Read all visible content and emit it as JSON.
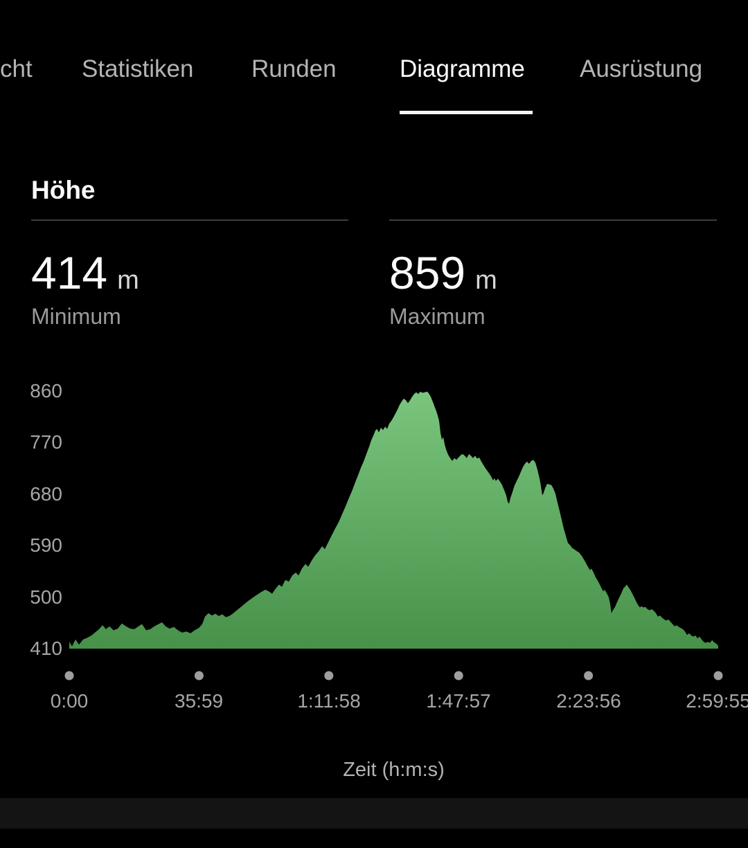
{
  "tab_bar": {
    "tabs": [
      {
        "label": "cht",
        "active": false
      },
      {
        "label": "Statistiken",
        "active": false
      },
      {
        "label": "Runden",
        "active": false
      },
      {
        "label": "Diagramme",
        "active": true
      },
      {
        "label": "Ausrüstung",
        "active": false
      }
    ]
  },
  "section": {
    "title": "Höhe"
  },
  "stats": {
    "minimum": {
      "value": "414",
      "unit": "m",
      "label": "Minimum"
    },
    "maximum": {
      "value": "859",
      "unit": "m",
      "label": "Maximum"
    }
  },
  "chart_data": {
    "type": "area",
    "title": "Höhe",
    "xlabel": "Zeit (h:m:s)",
    "ylabel": "m",
    "ylim": [
      410,
      860
    ],
    "y_ticks": [
      860,
      770,
      680,
      590,
      500,
      410
    ],
    "x_total_seconds": 10795,
    "x_ticks": [
      {
        "t": 0,
        "label": "0:00"
      },
      {
        "t": 2159,
        "label": "35:59"
      },
      {
        "t": 4318,
        "label": "1:11:58"
      },
      {
        "t": 6477,
        "label": "1:47:57"
      },
      {
        "t": 8636,
        "label": "2:23:56"
      },
      {
        "t": 10795,
        "label": "2:59:55"
      }
    ],
    "grid": false,
    "legend": false,
    "fill_gradient": {
      "top": "#7cc77f",
      "bottom": "#47914a"
    },
    "series": [
      {
        "name": "Höhe",
        "unit": "m",
        "points": [
          [
            0,
            422
          ],
          [
            46,
            414
          ],
          [
            104,
            426
          ],
          [
            161,
            417
          ],
          [
            230,
            426
          ],
          [
            300,
            429
          ],
          [
            369,
            433
          ],
          [
            426,
            438
          ],
          [
            495,
            444
          ],
          [
            553,
            451
          ],
          [
            611,
            444
          ],
          [
            668,
            449
          ],
          [
            737,
            442
          ],
          [
            806,
            445
          ],
          [
            875,
            454
          ],
          [
            945,
            449
          ],
          [
            1014,
            445
          ],
          [
            1083,
            444
          ],
          [
            1152,
            449
          ],
          [
            1210,
            453
          ],
          [
            1279,
            442
          ],
          [
            1348,
            444
          ],
          [
            1417,
            449
          ],
          [
            1486,
            453
          ],
          [
            1544,
            456
          ],
          [
            1601,
            449
          ],
          [
            1670,
            445
          ],
          [
            1740,
            448
          ],
          [
            1809,
            442
          ],
          [
            1878,
            438
          ],
          [
            1947,
            440
          ],
          [
            2016,
            437
          ],
          [
            2085,
            442
          ],
          [
            2154,
            446
          ],
          [
            2212,
            453
          ],
          [
            2258,
            466
          ],
          [
            2316,
            472
          ],
          [
            2373,
            468
          ],
          [
            2431,
            471
          ],
          [
            2489,
            467
          ],
          [
            2546,
            470
          ],
          [
            2604,
            465
          ],
          [
            2661,
            467
          ],
          [
            2719,
            471
          ],
          [
            2777,
            476
          ],
          [
            2846,
            482
          ],
          [
            2915,
            488
          ],
          [
            2984,
            494
          ],
          [
            3053,
            499
          ],
          [
            3122,
            504
          ],
          [
            3191,
            509
          ],
          [
            3260,
            513
          ],
          [
            3318,
            510
          ],
          [
            3375,
            506
          ],
          [
            3433,
            515
          ],
          [
            3491,
            522
          ],
          [
            3537,
            518
          ],
          [
            3594,
            530
          ],
          [
            3652,
            527
          ],
          [
            3710,
            538
          ],
          [
            3767,
            543
          ],
          [
            3813,
            538
          ],
          [
            3871,
            550
          ],
          [
            3929,
            558
          ],
          [
            3975,
            553
          ],
          [
            4032,
            564
          ],
          [
            4090,
            573
          ],
          [
            4147,
            580
          ],
          [
            4205,
            589
          ],
          [
            4251,
            584
          ],
          [
            4309,
            596
          ],
          [
            4366,
            608
          ],
          [
            4424,
            620
          ],
          [
            4482,
            631
          ],
          [
            4539,
            645
          ],
          [
            4597,
            659
          ],
          [
            4655,
            674
          ],
          [
            4712,
            688
          ],
          [
            4758,
            701
          ],
          [
            4804,
            713
          ],
          [
            4850,
            726
          ],
          [
            4896,
            737
          ],
          [
            4942,
            750
          ],
          [
            4988,
            763
          ],
          [
            5023,
            774
          ],
          [
            5058,
            782
          ],
          [
            5092,
            791
          ],
          [
            5115,
            794
          ],
          [
            5150,
            788
          ],
          [
            5184,
            796
          ],
          [
            5219,
            792
          ],
          [
            5253,
            798
          ],
          [
            5288,
            794
          ],
          [
            5322,
            803
          ],
          [
            5357,
            808
          ],
          [
            5392,
            814
          ],
          [
            5426,
            821
          ],
          [
            5461,
            828
          ],
          [
            5495,
            836
          ],
          [
            5530,
            842
          ],
          [
            5564,
            847
          ],
          [
            5599,
            844
          ],
          [
            5634,
            839
          ],
          [
            5668,
            844
          ],
          [
            5703,
            850
          ],
          [
            5737,
            855
          ],
          [
            5772,
            858
          ],
          [
            5806,
            855
          ],
          [
            5841,
            859
          ],
          [
            5876,
            857
          ],
          [
            5910,
            858
          ],
          [
            5956,
            859
          ],
          [
            5979,
            856
          ],
          [
            6014,
            850
          ],
          [
            6037,
            844
          ],
          [
            6060,
            838
          ],
          [
            6083,
            831
          ],
          [
            6106,
            825
          ],
          [
            6129,
            817
          ],
          [
            6152,
            808
          ],
          [
            6175,
            787
          ],
          [
            6198,
            775
          ],
          [
            6221,
            780
          ],
          [
            6244,
            767
          ],
          [
            6267,
            758
          ],
          [
            6302,
            749
          ],
          [
            6336,
            743
          ],
          [
            6371,
            738
          ],
          [
            6406,
            743
          ],
          [
            6440,
            740
          ],
          [
            6475,
            744
          ],
          [
            6509,
            748
          ],
          [
            6544,
            750
          ],
          [
            6578,
            747
          ],
          [
            6613,
            743
          ],
          [
            6647,
            750
          ],
          [
            6682,
            747
          ],
          [
            6716,
            743
          ],
          [
            6751,
            747
          ],
          [
            6786,
            742
          ],
          [
            6820,
            744
          ],
          [
            6855,
            737
          ],
          [
            6889,
            731
          ],
          [
            6924,
            725
          ],
          [
            6958,
            720
          ],
          [
            6993,
            715
          ],
          [
            7027,
            709
          ],
          [
            7050,
            704
          ],
          [
            7073,
            708
          ],
          [
            7096,
            703
          ],
          [
            7131,
            707
          ],
          [
            7165,
            702
          ],
          [
            7200,
            696
          ],
          [
            7235,
            687
          ],
          [
            7269,
            678
          ],
          [
            7292,
            667
          ],
          [
            7315,
            663
          ],
          [
            7338,
            673
          ],
          [
            7373,
            684
          ],
          [
            7407,
            695
          ],
          [
            7442,
            703
          ],
          [
            7476,
            710
          ],
          [
            7511,
            719
          ],
          [
            7545,
            727
          ],
          [
            7580,
            733
          ],
          [
            7614,
            737
          ],
          [
            7649,
            733
          ],
          [
            7684,
            738
          ],
          [
            7718,
            740
          ],
          [
            7753,
            735
          ],
          [
            7787,
            723
          ],
          [
            7822,
            708
          ],
          [
            7845,
            695
          ],
          [
            7868,
            678
          ],
          [
            7891,
            682
          ],
          [
            7914,
            690
          ],
          [
            7949,
            698
          ],
          [
            7983,
            697
          ],
          [
            8018,
            696
          ],
          [
            8052,
            690
          ],
          [
            8087,
            681
          ],
          [
            8122,
            665
          ],
          [
            8156,
            651
          ],
          [
            8191,
            635
          ],
          [
            8225,
            620
          ],
          [
            8260,
            607
          ],
          [
            8294,
            595
          ],
          [
            8329,
            591
          ],
          [
            8364,
            586
          ],
          [
            8398,
            584
          ],
          [
            8433,
            581
          ],
          [
            8479,
            578
          ],
          [
            8525,
            572
          ],
          [
            8571,
            564
          ],
          [
            8617,
            555
          ],
          [
            8663,
            547
          ],
          [
            8686,
            550
          ],
          [
            8721,
            543
          ],
          [
            8755,
            535
          ],
          [
            8801,
            527
          ],
          [
            8847,
            517
          ],
          [
            8882,
            510
          ],
          [
            8905,
            513
          ],
          [
            8939,
            507
          ],
          [
            8974,
            500
          ],
          [
            8997,
            489
          ],
          [
            9020,
            472
          ],
          [
            9043,
            477
          ],
          [
            9078,
            483
          ],
          [
            9112,
            491
          ],
          [
            9147,
            499
          ],
          [
            9181,
            506
          ],
          [
            9216,
            515
          ],
          [
            9251,
            519
          ],
          [
            9274,
            522
          ],
          [
            9297,
            518
          ],
          [
            9331,
            513
          ],
          [
            9366,
            506
          ],
          [
            9400,
            499
          ],
          [
            9435,
            491
          ],
          [
            9470,
            485
          ],
          [
            9493,
            482
          ],
          [
            9516,
            484
          ],
          [
            9550,
            482
          ],
          [
            9585,
            483
          ],
          [
            9619,
            479
          ],
          [
            9654,
            477
          ],
          [
            9689,
            479
          ],
          [
            9723,
            476
          ],
          [
            9758,
            472
          ],
          [
            9792,
            466
          ],
          [
            9827,
            468
          ],
          [
            9862,
            464
          ],
          [
            9896,
            461
          ],
          [
            9931,
            459
          ],
          [
            9965,
            461
          ],
          [
            10000,
            457
          ],
          [
            10035,
            453
          ],
          [
            10069,
            449
          ],
          [
            10104,
            451
          ],
          [
            10138,
            448
          ],
          [
            10173,
            446
          ],
          [
            10207,
            444
          ],
          [
            10242,
            440
          ],
          [
            10277,
            434
          ],
          [
            10311,
            437
          ],
          [
            10346,
            433
          ],
          [
            10380,
            431
          ],
          [
            10415,
            433
          ],
          [
            10450,
            428
          ],
          [
            10484,
            431
          ],
          [
            10519,
            426
          ],
          [
            10553,
            422
          ],
          [
            10588,
            420
          ],
          [
            10622,
            422
          ],
          [
            10657,
            420
          ],
          [
            10692,
            425
          ],
          [
            10726,
            421
          ],
          [
            10761,
            419
          ],
          [
            10795,
            415
          ]
        ]
      }
    ]
  },
  "colors": {
    "background": "#000000",
    "tab_inactive": "#b4b4b4",
    "tab_active": "#ffffff",
    "divider": "#3e3e3e",
    "axis_label": "#a6a6a6",
    "tick_dot": "#9e9e9e",
    "bottom_bar": "#141414"
  }
}
